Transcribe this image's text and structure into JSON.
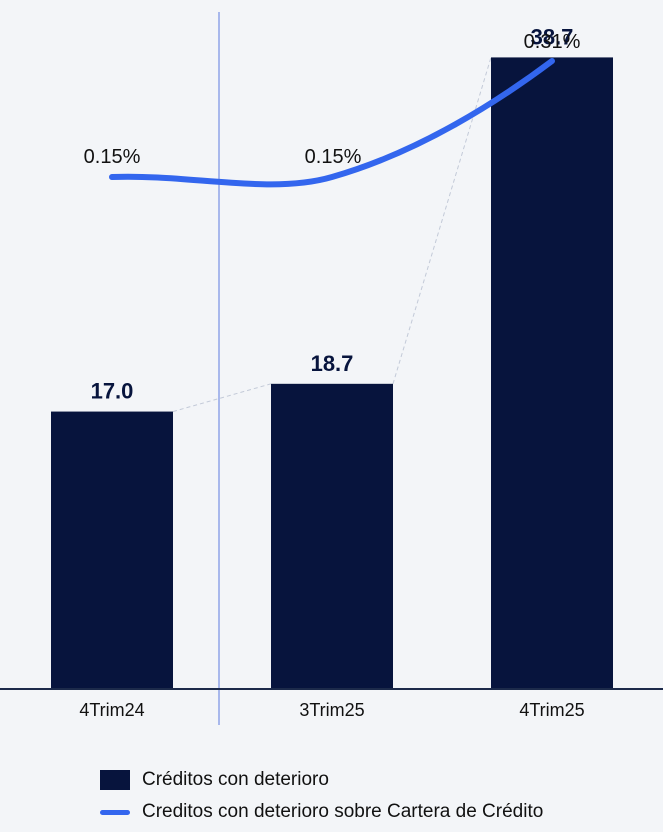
{
  "colors": {
    "background": "#f3f5f8",
    "bar": "#07143d",
    "line": "#3366ee",
    "divider": "#a8b8ec",
    "connector": "#c3cad8",
    "axis": "#1c2a4a",
    "text": "#111111"
  },
  "chart_data": {
    "type": "bar",
    "title": "",
    "xlabel": "",
    "ylabel": "",
    "categories": [
      "4Trim24",
      "3Trim25",
      "4Trim25"
    ],
    "ylim": [
      0,
      40
    ],
    "grid": false,
    "legend_position": "bottom-left",
    "series": [
      {
        "name": "Créditos con deterioro",
        "type": "bar",
        "values": [
          17.0,
          18.7,
          38.7
        ],
        "labels": [
          "17.0",
          "18.7",
          "38.7"
        ]
      },
      {
        "name": "Creditos con deterioro sobre Cartera de Crédito",
        "type": "line",
        "values": [
          0.15,
          0.15,
          0.31
        ],
        "labels": [
          "0.15%",
          "0.15%",
          "0.31%"
        ]
      }
    ]
  },
  "legend": {
    "bar_label": "Créditos con deterioro",
    "line_label": "Creditos con deterioro sobre Cartera de Crédito"
  }
}
